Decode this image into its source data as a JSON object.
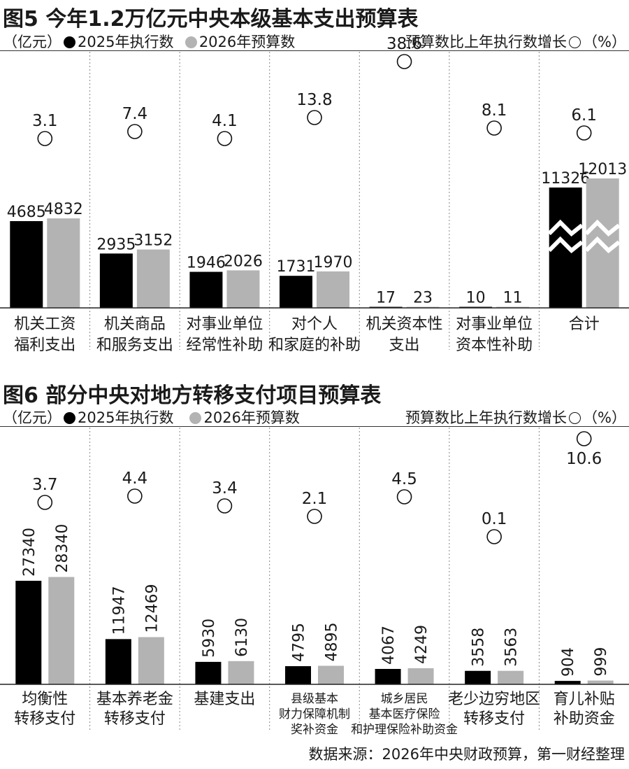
{
  "chart_data": [
    {
      "type": "bar",
      "title": "图5 今年1.2万亿元中央本级基本支出预算表",
      "unit": "（亿元）",
      "legend_right": "预算数比上年执行数增长",
      "legend_right_unit": "（%）",
      "series": [
        {
          "name": "2025年执行数",
          "color": "#000000",
          "values": [
            4685,
            2935,
            1946,
            1731,
            17,
            10,
            11326
          ]
        },
        {
          "name": "2026年预算数",
          "color": "#b3b3b3",
          "values": [
            4832,
            3152,
            2026,
            1970,
            23,
            11,
            12013
          ]
        }
      ],
      "categories": [
        [
          "机关工资",
          "福利支出"
        ],
        [
          "机关商品",
          "和服务支出"
        ],
        [
          "对事业单位",
          "经常性补助"
        ],
        [
          "对个人",
          "和家庭的补助"
        ],
        [
          "机关资本性",
          "支出"
        ],
        [
          "对事业单位",
          "资本性补助"
        ],
        [
          "合计"
        ]
      ],
      "growth": [
        "3.1",
        "7.4",
        "4.1",
        "13.8",
        "38.6",
        "8.1",
        "6.1"
      ]
    },
    {
      "type": "bar",
      "title": "图6 部分中央对地方转移支付项目预算表",
      "unit": "（亿元）",
      "legend_right": "预算数比上年执行数增长",
      "legend_right_unit": "（%）",
      "series": [
        {
          "name": "2025年执行数",
          "color": "#000000",
          "values": [
            27340,
            11947,
            5930,
            4795,
            4067,
            3558,
            904
          ]
        },
        {
          "name": "2026年预算数",
          "color": "#b3b3b3",
          "values": [
            28340,
            12469,
            6130,
            4895,
            4249,
            3563,
            999
          ]
        }
      ],
      "categories": [
        [
          "均衡性",
          "转移支付"
        ],
        [
          "基本养老金",
          "转移支付"
        ],
        [
          "基建支出"
        ],
        [
          "县级基本",
          "财力保障机制",
          "奖补资金"
        ],
        [
          "城乡居民",
          "基本医疗保险",
          "和护理保险补助资金"
        ],
        [
          "老少边穷地区",
          "转移支付"
        ],
        [
          "育儿补贴",
          "补助资金"
        ]
      ],
      "growth": [
        "3.7",
        "4.4",
        "3.4",
        "2.1",
        "4.5",
        "0.1",
        "10.6"
      ]
    }
  ],
  "source": "数据来源：2026年中央财政预算，第一财经整理"
}
